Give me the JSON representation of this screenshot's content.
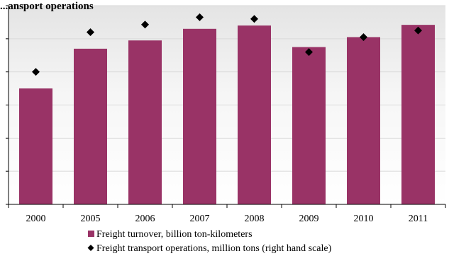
{
  "chart_data": {
    "type": "bar",
    "title": "...ansport operations",
    "categories": [
      "2000",
      "2005",
      "2006",
      "2007",
      "2008",
      "2009",
      "2010",
      "2011"
    ],
    "series": [
      {
        "name": "Freight turnover, billion ton-kilometers",
        "kind": "bar",
        "axis": "left",
        "values": [
          3.5,
          4.7,
          4.95,
          5.3,
          5.4,
          4.75,
          5.05,
          5.42
        ]
      },
      {
        "name": "Freight transport operations, million tons (right hand scale)",
        "kind": "scatter",
        "axis": "right",
        "values": [
          4.0,
          5.2,
          5.43,
          5.65,
          5.6,
          4.6,
          5.05,
          5.25
        ]
      }
    ],
    "ylim": [
      0,
      6
    ],
    "grid": true,
    "grid_style": "horizontal",
    "legend_position": "bottom-left",
    "colors": {
      "bar": "#993366",
      "marker": "#000000",
      "axis": "#000000",
      "grid": "#d9d9d9",
      "plot_background_top": "#e6e6e6",
      "plot_background_bottom": "#ffffff"
    }
  }
}
